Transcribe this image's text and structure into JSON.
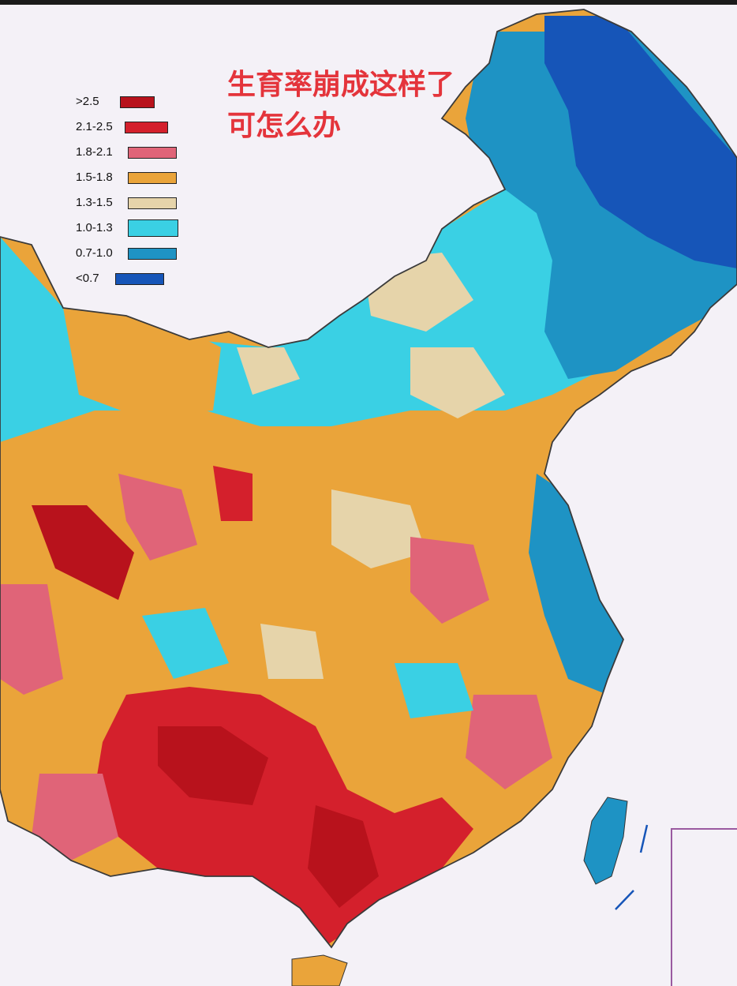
{
  "headline": {
    "line1": "生育率崩成这样了",
    "line2": "可怎么办"
  },
  "legend": {
    "items": [
      {
        "label": ">2.5",
        "color": "#b8121c"
      },
      {
        "label": "2.1-2.5",
        "color": "#d4202c"
      },
      {
        "label": "1.8-2.1",
        "color": "#e06478"
      },
      {
        "label": "1.5-1.8",
        "color": "#eaa43a"
      },
      {
        "label": "1.3-1.5",
        "color": "#e6d4aa"
      },
      {
        "label": "1.0-1.3",
        "color": "#3ad0e4"
      },
      {
        "label": "0.7-1.0",
        "color": "#1e93c4"
      },
      {
        "label": "<0.7",
        "color": "#1655b8"
      }
    ]
  },
  "map": {
    "subject": "China",
    "regions": [
      {
        "region": "Northeast",
        "level": "0.7-1.0 / <0.7"
      },
      {
        "region": "North",
        "level": "1.0-1.3 / 1.3-1.5"
      },
      {
        "region": "East coast",
        "level": "0.7-1.0 / 1.0-1.3"
      },
      {
        "region": "Central",
        "level": "1.5-1.8 / 1.3-1.5"
      },
      {
        "region": "Southwest",
        "level": "2.1-2.5 / >2.5"
      },
      {
        "region": "South",
        "level": "2.1-2.5 / >2.5"
      },
      {
        "region": "Taiwan",
        "level": "0.7-1.0"
      }
    ]
  }
}
